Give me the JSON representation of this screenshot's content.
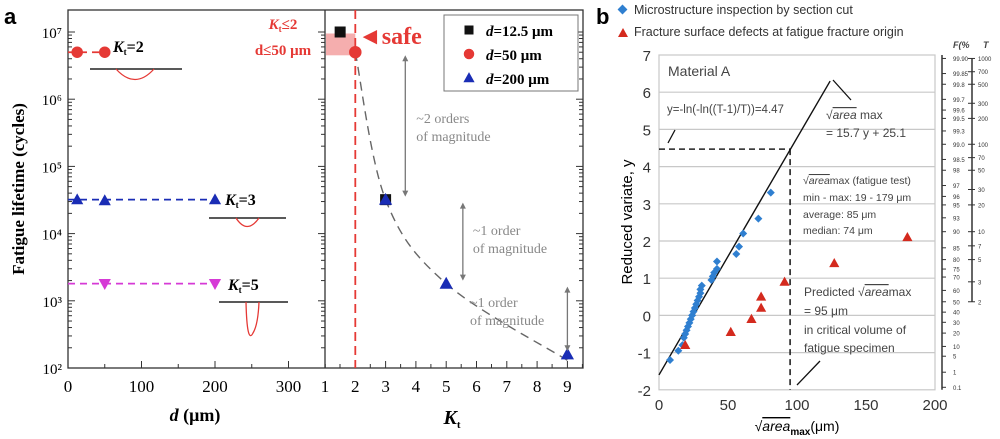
{
  "panels": {
    "a": "a",
    "b": "b"
  },
  "chart_data": [
    {
      "type": "scatter",
      "panel": "a-left",
      "xlabel_italic": "d",
      "xlabel_unit": " (μm)",
      "ylabel": "Fatigue lifetime (cycles)",
      "xlim": [
        0,
        320
      ],
      "xticks": [
        0,
        100,
        200,
        300
      ],
      "ylim": [
        100,
        10000000
      ],
      "yscale": "log",
      "yticks": [
        2,
        3,
        4,
        5,
        6,
        7
      ],
      "ytick_labels": [
        "10²",
        "10³",
        "10⁴",
        "10⁵",
        "10⁶",
        "10⁷"
      ],
      "series": [
        {
          "label": "Kt=2",
          "label_main": "K",
          "label_sub": "t",
          "label_tail": "=2",
          "color": "#e53935",
          "marker": "circle",
          "x": [
            12.5,
            50
          ],
          "y": [
            5000000,
            5000000
          ]
        },
        {
          "label": "Kt=3",
          "label_main": "K",
          "label_sub": "t",
          "label_tail": "=3",
          "color": "#1a2db5",
          "marker": "triangle-up",
          "x": [
            12.5,
            50,
            200
          ],
          "y": [
            32000,
            31000,
            32000
          ]
        },
        {
          "label": "Kt=5",
          "label_main": "K",
          "label_sub": "t",
          "label_tail": "=5",
          "color": "#d63ad6",
          "marker": "triangle-down",
          "x": [
            50,
            200
          ],
          "y": [
            1800,
            1800
          ]
        }
      ],
      "annotation": {
        "line1_main": "K",
        "line1_sub": "t",
        "line1_tail": "≤2",
        "line2": "d≤50 μm",
        "color": "#e53935"
      }
    },
    {
      "type": "scatter",
      "panel": "a-right",
      "xlabel_main": "K",
      "xlabel_sub": "t",
      "xlim": [
        1,
        9.6
      ],
      "xticks": [
        1,
        2,
        3,
        4,
        5,
        6,
        7,
        8,
        9
      ],
      "ylim": [
        100,
        10000000
      ],
      "yscale": "log",
      "legend": [
        {
          "label_italic": "d",
          "label": "=12.5 μm",
          "color": "#111111",
          "marker": "square"
        },
        {
          "label_italic": "d",
          "label": "=50 μm",
          "color": "#e53935",
          "marker": "circle"
        },
        {
          "label_italic": "d",
          "label": "=200 μm",
          "color": "#1a2db5",
          "marker": "triangle-up"
        }
      ],
      "legend_position": "top-right",
      "points": [
        {
          "x": 1.5,
          "y": 10000000,
          "series": 0
        },
        {
          "x": 2,
          "y": 5000000,
          "series": 1
        },
        {
          "x": 3,
          "y": 32000,
          "series": 0
        },
        {
          "x": 3,
          "y": 32000,
          "series": 2
        },
        {
          "x": 5,
          "y": 1800,
          "series": 2
        },
        {
          "x": 9,
          "y": 160,
          "series": 2
        }
      ],
      "trend_curve": {
        "x": [
          2,
          3,
          5,
          9
        ],
        "y": [
          5000000,
          32000,
          1800,
          130
        ]
      },
      "threshold_x": 2,
      "safe_label": "◄safe",
      "arrows": [
        {
          "from": 5000000,
          "to": 32000,
          "x": 3.65,
          "text1": "~2 orders",
          "text2": "of magnitude"
        },
        {
          "from": 32000,
          "to": 1800,
          "x": 5.55,
          "text1": "~1 order",
          "text2": "of magnitude"
        },
        {
          "from": 1800,
          "to": 160,
          "x": 9,
          "text1": "~1 order",
          "text2": "of magnitude"
        }
      ]
    },
    {
      "type": "scatter",
      "panel": "b",
      "xlabel_pre": "√",
      "xlabel_area": "area",
      "xlabel_sub": "max",
      "xlabel_unit": "(μm)",
      "ylabel": "Reduced variate, y",
      "xlim": [
        0,
        200
      ],
      "xticks": [
        0,
        50,
        100,
        150,
        200
      ],
      "ylim": [
        -2,
        7
      ],
      "yticks": [
        -2,
        -1,
        0,
        1,
        2,
        3,
        4,
        5,
        6,
        7
      ],
      "grid": true,
      "legend_position": "top",
      "series": [
        {
          "name": "Microstructure inspection by section cut",
          "color": "#2f7fd0",
          "marker": "diamond",
          "x": [
            8,
            14,
            17,
            18,
            19,
            20,
            21,
            22,
            23,
            24,
            25,
            26,
            27,
            28,
            29,
            30,
            30,
            31,
            38,
            39,
            40,
            42,
            42,
            56,
            58,
            61,
            72,
            81
          ],
          "y": [
            -1.2,
            -0.95,
            -0.8,
            -0.6,
            -0.5,
            -0.4,
            -0.3,
            -0.2,
            -0.1,
            0,
            0.1,
            0.2,
            0.3,
            0.4,
            0.5,
            0.6,
            0.7,
            0.8,
            0.95,
            1.05,
            1.15,
            1.25,
            1.45,
            1.65,
            1.85,
            2.2,
            2.6,
            3.3
          ]
        },
        {
          "name": "Fracture surface defects at fatigue fracture origin",
          "color": "#d42a1e",
          "marker": "triangle-up",
          "x": [
            19,
            52,
            67,
            74,
            74,
            91,
            127,
            180
          ],
          "y": [
            -0.8,
            -0.45,
            -0.1,
            0.2,
            0.5,
            0.9,
            1.4,
            2.1
          ]
        }
      ],
      "fit_line": {
        "slope": 15.7,
        "intercept": 25.1,
        "y_range": [
          -1.6,
          6.3
        ]
      },
      "return_level_y": 4.47,
      "predicted_x": 95,
      "annotations": {
        "material": "Material A",
        "return_eq": "y=-ln(-ln((T-1)/T))=4.47",
        "fit_1_pre": "√",
        "fit_1_area": "area",
        "fit_1_post": " max",
        "fit_2": "= 15.7 y + 25.1",
        "stats_1_pre": "√",
        "stats_1_area": "area",
        "stats_1_post": "max (fatigue test)",
        "stats_2": "min - max: 19 - 179 μm",
        "stats_3": "average: 85 μm",
        "stats_4": "median: 74 μm",
        "pred_1_pre": "Predicted √",
        "pred_1_area": "area",
        "pred_1_post": "max",
        "pred_2": "= 95 μm",
        "pred_3": "in critical volume of",
        "pred_4": "fatigue specimen"
      },
      "secondary_axes": {
        "F_title": "F(%",
        "T_title": "T",
        "F_ticks": [
          99.9,
          99.85,
          99.8,
          99.7,
          99.6,
          99.5,
          99.3,
          99.0,
          98.5,
          98,
          97,
          96,
          95,
          93,
          90,
          85,
          80,
          75,
          70,
          60,
          50,
          40,
          30,
          20,
          10,
          5,
          1,
          0.1
        ],
        "F_labels": [
          "99.90",
          "99.85",
          "99.8",
          "99.7",
          "99.6",
          "99.5",
          "99.3",
          "99.0",
          "98.5",
          "98",
          "97",
          "96",
          "95",
          "93",
          "90",
          "85",
          "80",
          "75",
          "70",
          "60",
          "50",
          "40",
          "30",
          "20",
          "10",
          "5",
          "1",
          "0.1"
        ],
        "T_ticks": [
          1000,
          700,
          500,
          300,
          200,
          100,
          70,
          50,
          30,
          20,
          10,
          7,
          5,
          3,
          2
        ]
      }
    }
  ]
}
